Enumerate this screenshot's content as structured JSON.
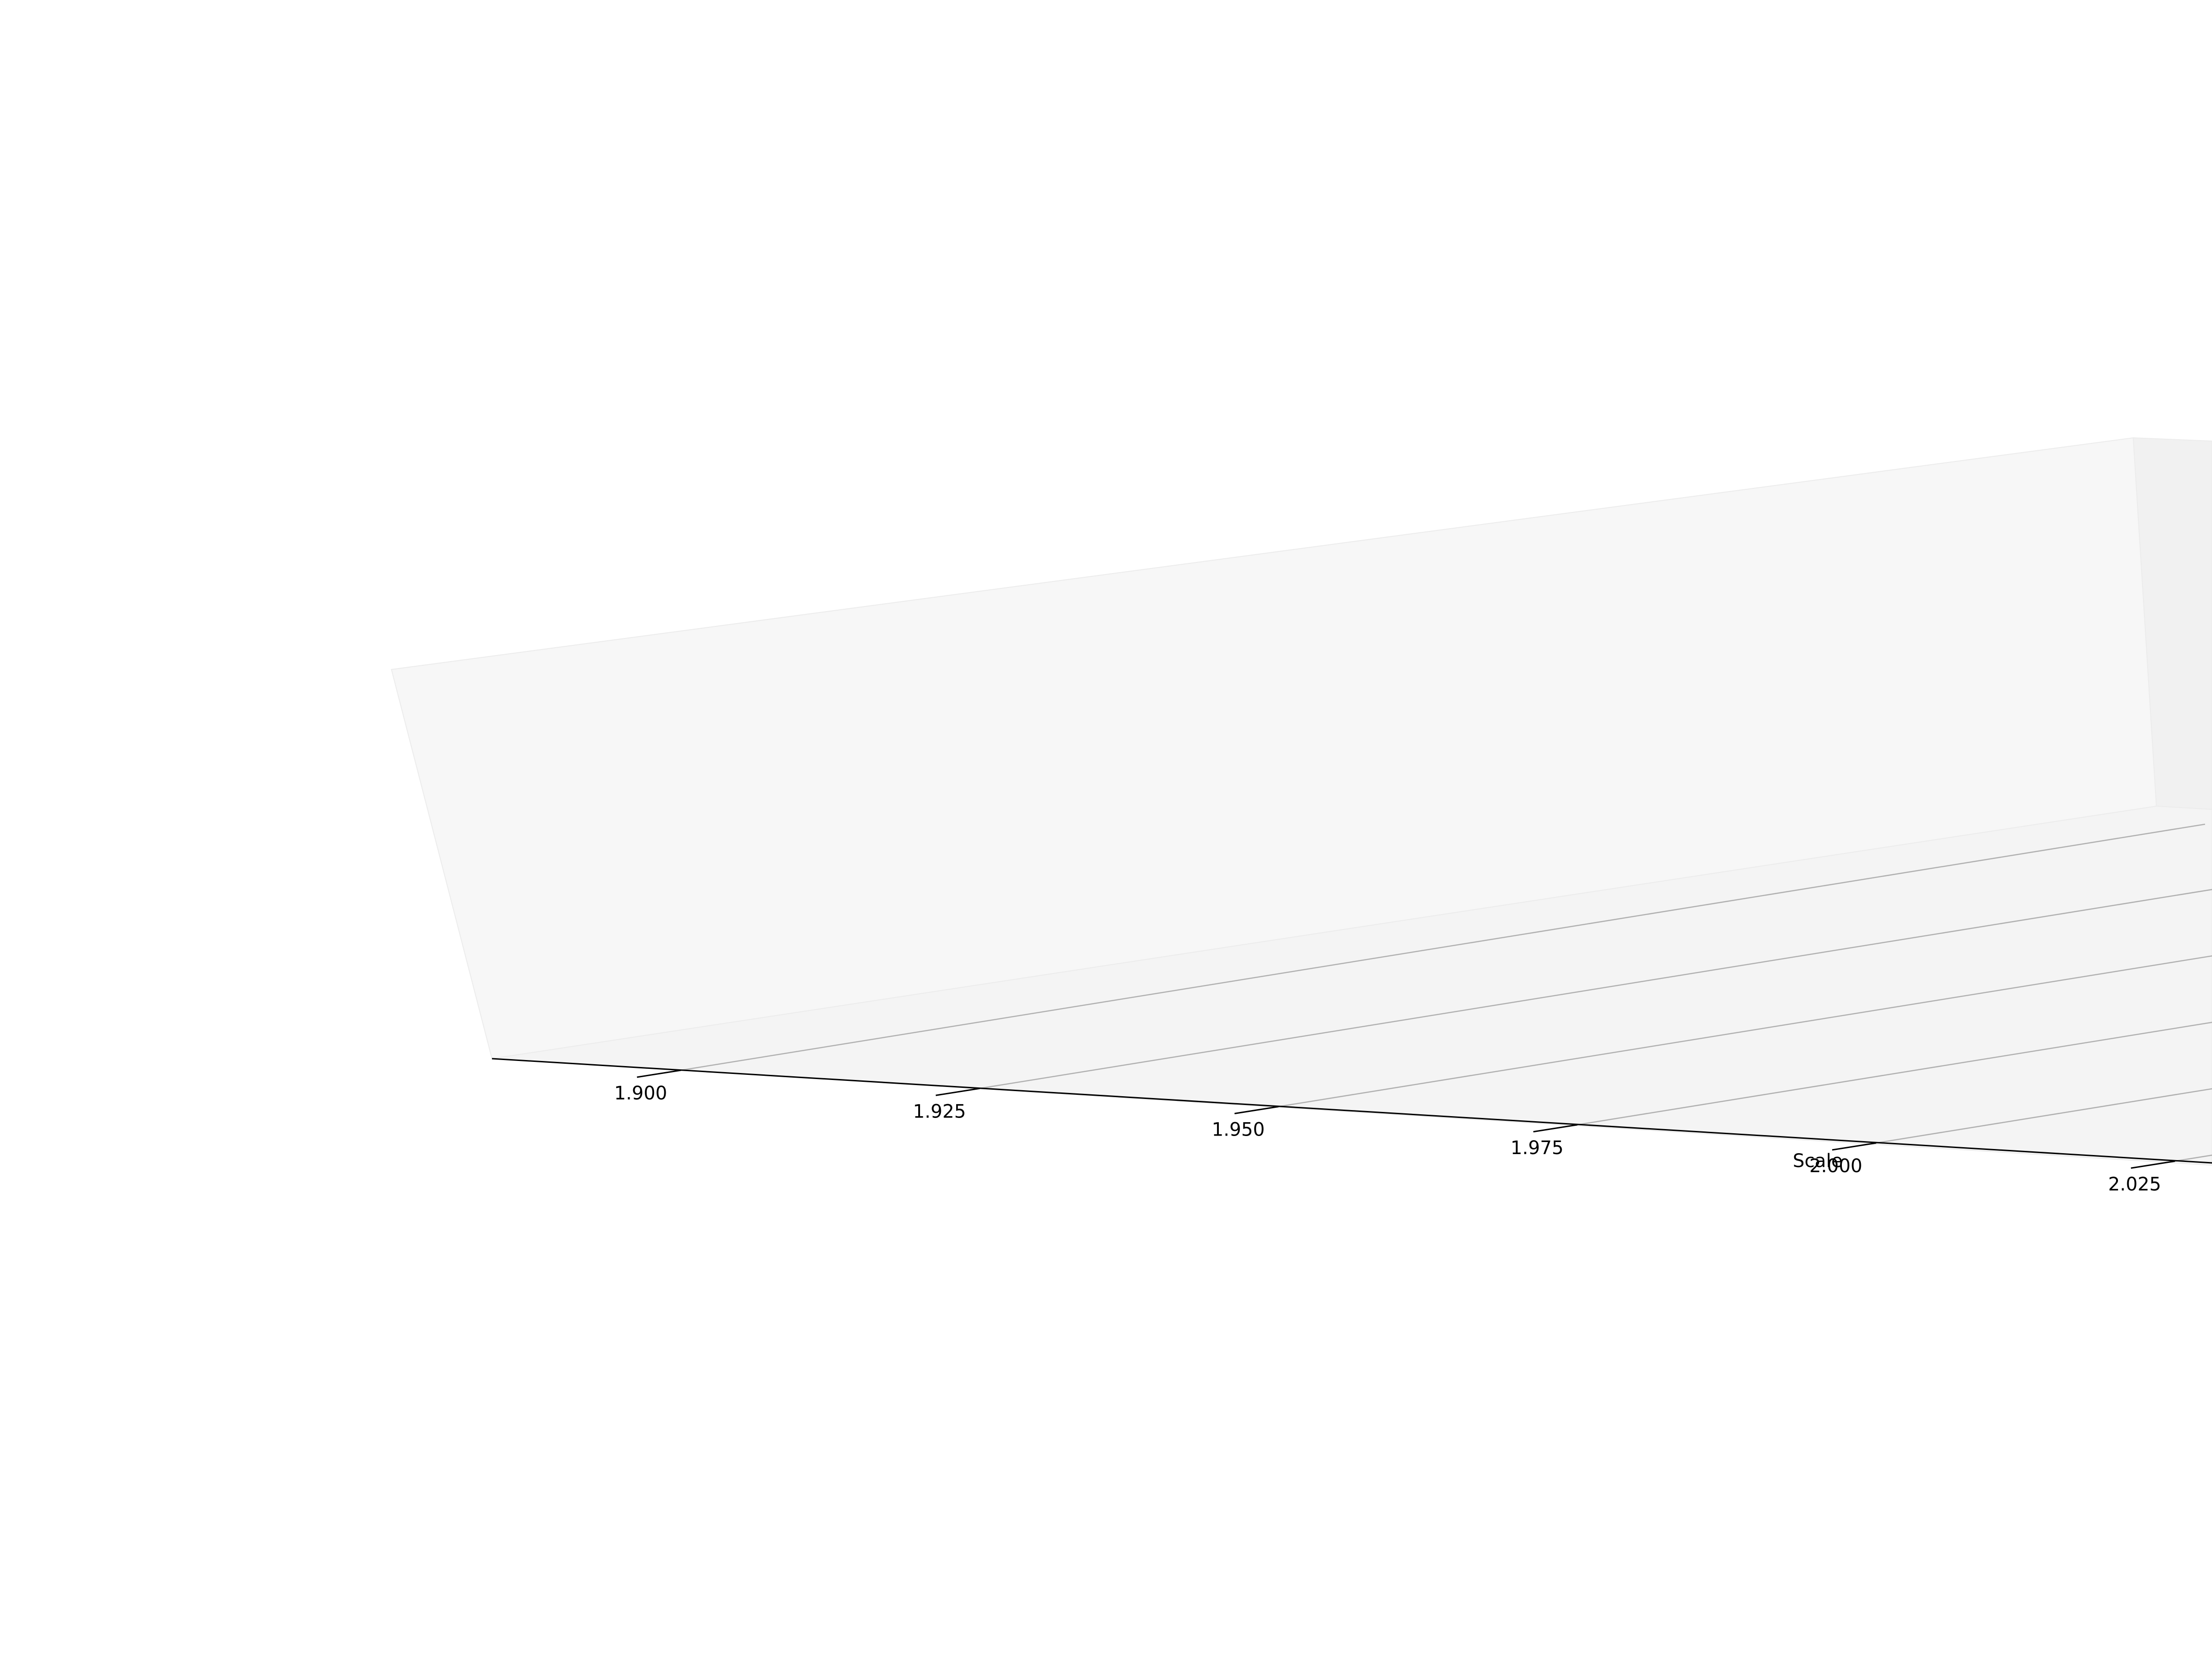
{
  "chart_data": {
    "type": "scatter",
    "projection": "3d",
    "title": "",
    "xlabel": "Scale",
    "x_ticks": [
      1.9,
      1.925,
      1.95,
      1.975,
      2.0,
      2.025
    ],
    "x_tick_labels": [
      "1.900",
      "1.925",
      "1.950",
      "1.975",
      "2.000",
      "2.025"
    ],
    "grid": true,
    "series": []
  },
  "colors": {
    "pane_back": "#f7f7f7",
    "pane_side": "#f1f1f1",
    "pane_floor": "#f4f4f4",
    "grid": "#b0b0b0",
    "axis": "#000000",
    "background": "#ffffff"
  }
}
